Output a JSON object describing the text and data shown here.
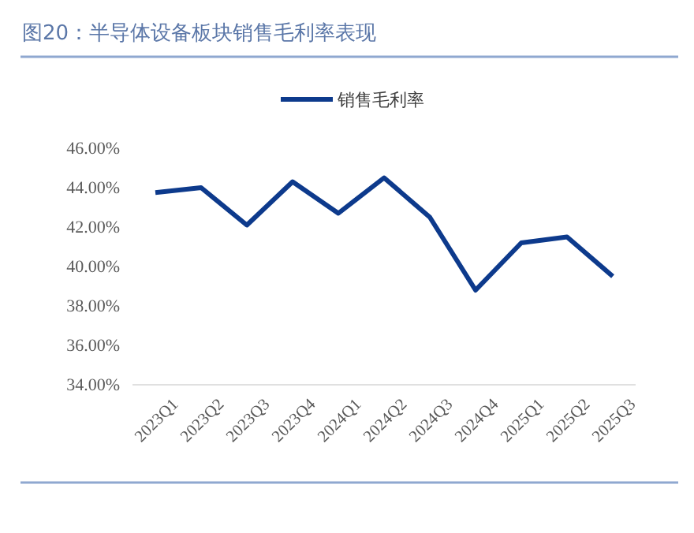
{
  "chart_data": {
    "type": "line",
    "title": "图20：半导体设备板块销售毛利率表现",
    "categories": [
      "2023Q1",
      "2023Q2",
      "2023Q3",
      "2023Q4",
      "2024Q1",
      "2024Q2",
      "2024Q3",
      "2024Q4",
      "2025Q1",
      "2025Q2",
      "2025Q3"
    ],
    "series": [
      {
        "name": "销售毛利率",
        "color": "#0d3a8c",
        "values": [
          43.75,
          44.0,
          42.1,
          44.3,
          42.7,
          44.5,
          42.5,
          38.8,
          41.2,
          41.5,
          39.5
        ]
      }
    ],
    "ylim": [
      34,
      46
    ],
    "yticks": [
      {
        "value": 34,
        "label": "34.00%"
      },
      {
        "value": 36,
        "label": "36.00%"
      },
      {
        "value": 38,
        "label": "38.00%"
      },
      {
        "value": 40,
        "label": "40.00%"
      },
      {
        "value": 42,
        "label": "42.00%"
      },
      {
        "value": 44,
        "label": "44.00%"
      },
      {
        "value": 46,
        "label": "46.00%"
      }
    ],
    "grid": false,
    "legend": "top",
    "marker": "none",
    "line_style": "solid"
  }
}
